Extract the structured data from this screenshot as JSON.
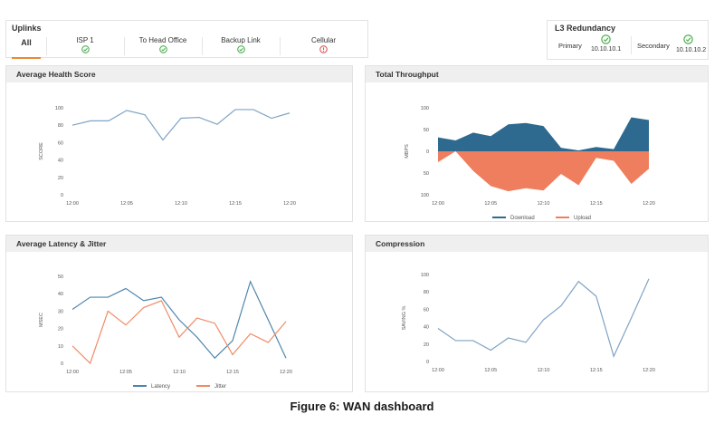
{
  "uplinks": {
    "title": "Uplinks",
    "tabs": [
      {
        "label": "All",
        "status": "none"
      },
      {
        "label": "ISP 1",
        "status": "ok"
      },
      {
        "label": "To Head Office",
        "status": "ok"
      },
      {
        "label": "Backup Link",
        "status": "ok"
      },
      {
        "label": "Cellular",
        "status": "error"
      }
    ]
  },
  "redundancy": {
    "title": "L3 Redundancy",
    "primary_label": "Primary",
    "primary_ip": "10.10.10.1",
    "secondary_label": "Secondary",
    "secondary_ip": "10.10.10.2"
  },
  "colors": {
    "ok": "#4caf50",
    "error": "#e05555",
    "line": "#7fa3c4",
    "download": "#2e6a8f",
    "upload": "#ef7e5e",
    "latency": "#4f86ad",
    "jitter": "#ef8c67",
    "tab_active": "#e98a34"
  },
  "panels": {
    "health": "Average Health Score",
    "throughput": "Total Throughput",
    "latency": "Average Latency & Jitter",
    "compression": "Compression"
  },
  "chart_data": [
    {
      "type": "line",
      "title": "Average Health Score",
      "ylabel": "SCORE",
      "ylim": [
        0,
        100
      ],
      "yticks": [
        0,
        20,
        40,
        60,
        80,
        100
      ],
      "xticks": [
        "12:00",
        "12:05",
        "12:10",
        "12:15",
        "12:20"
      ],
      "series": [
        {
          "values": [
            80,
            85,
            85,
            97,
            92,
            63,
            88,
            89,
            81,
            98,
            98,
            88,
            94
          ]
        }
      ]
    },
    {
      "type": "area",
      "title": "Total Throughput",
      "ylabel": "MBPS",
      "ylim": [
        -100,
        100
      ],
      "yticks": [
        100,
        50,
        0,
        50,
        100
      ],
      "xticks": [
        "12:00",
        "12:05",
        "12:10",
        "12:15",
        "12:20"
      ],
      "legend": "bottom",
      "series": [
        {
          "name": "Download",
          "values": [
            32,
            25,
            43,
            35,
            62,
            65,
            58,
            8,
            2,
            10,
            5,
            78,
            72
          ]
        },
        {
          "name": "Upload",
          "values": [
            -25,
            0,
            -45,
            -80,
            -92,
            -85,
            -90,
            -52,
            -78,
            -15,
            -22,
            -75,
            -40
          ]
        }
      ]
    },
    {
      "type": "line",
      "title": "Average Latency & Jitter",
      "ylabel": "MSEC",
      "ylim": [
        0,
        50
      ],
      "yticks": [
        0,
        10,
        20,
        30,
        40,
        50
      ],
      "xticks": [
        "12:00",
        "12:05",
        "12:10",
        "12:15",
        "12:20"
      ],
      "legend": "bottom",
      "series": [
        {
          "name": "Latency",
          "values": [
            31,
            38,
            38,
            43,
            36,
            38,
            25,
            15,
            3,
            13,
            47,
            25,
            3
          ]
        },
        {
          "name": "Jitter",
          "values": [
            10,
            0,
            30,
            22,
            32,
            36,
            15,
            26,
            23,
            5,
            17,
            12,
            24
          ]
        }
      ]
    },
    {
      "type": "line",
      "title": "Compression",
      "ylabel": "SAVING %",
      "ylim": [
        0,
        100
      ],
      "yticks": [
        0,
        20,
        40,
        60,
        80,
        100
      ],
      "xticks": [
        "12:00",
        "12:05",
        "12:10",
        "12:15",
        "12:20"
      ],
      "series": [
        {
          "values": [
            38,
            24,
            24,
            13,
            27,
            22,
            48,
            64,
            92,
            75,
            6,
            50,
            95
          ]
        }
      ]
    }
  ],
  "caption": "Figure 6: WAN dashboard"
}
